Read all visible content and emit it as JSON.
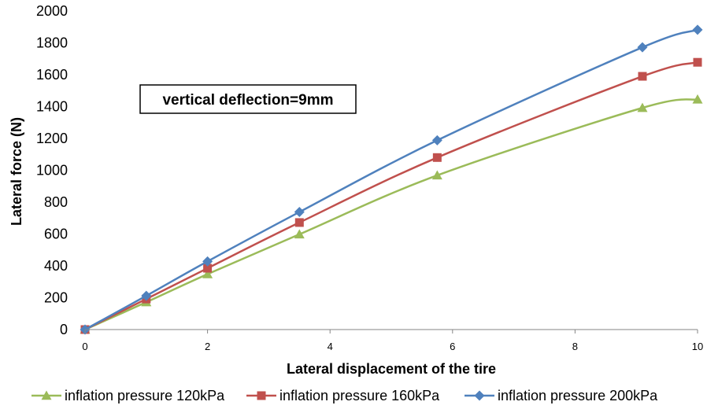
{
  "chart_data": {
    "type": "line",
    "title": "",
    "xlabel": "Lateral displacement of the tire",
    "ylabel": "Lateral force (N)",
    "xlim": [
      0,
      10
    ],
    "ylim": [
      0,
      2000
    ],
    "xticks": [
      0,
      2,
      4,
      6,
      8,
      10
    ],
    "yticks": [
      0,
      200,
      400,
      600,
      800,
      1000,
      1200,
      1400,
      1600,
      1800,
      2000
    ],
    "grid": false,
    "legend_position": "bottom",
    "annotation": "vertical deflection=9mm",
    "series": [
      {
        "name": "inflation pressure 120kPa",
        "color": "#9BBB59",
        "marker": "triangle",
        "x": [
          0,
          1,
          2,
          3.5,
          5.75,
          9.1,
          10
        ],
        "y": [
          0,
          172,
          348,
          598,
          968,
          1392,
          1445
        ]
      },
      {
        "name": "inflation pressure 160kPa",
        "color": "#C0504D",
        "marker": "square",
        "x": [
          0,
          1,
          2,
          3.5,
          5.75,
          9.1,
          10
        ],
        "y": [
          0,
          192,
          385,
          672,
          1080,
          1590,
          1678
        ]
      },
      {
        "name": "inflation pressure 200kPa",
        "color": "#4F81BD",
        "marker": "diamond",
        "x": [
          0,
          1,
          2,
          3.5,
          5.75,
          9.1,
          10
        ],
        "y": [
          0,
          212,
          428,
          738,
          1188,
          1772,
          1882
        ]
      }
    ]
  }
}
